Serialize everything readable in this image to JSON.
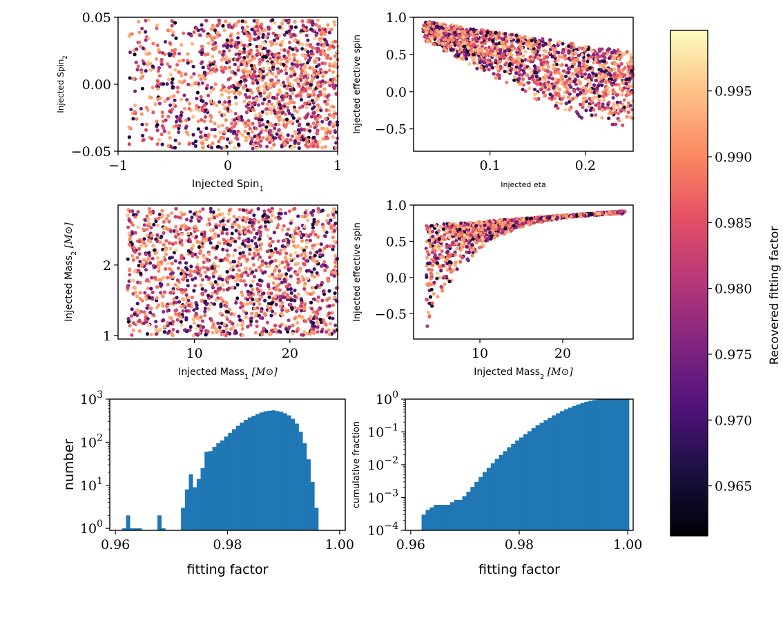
{
  "figure_title": "",
  "colors": {
    "hist_fill": "#1f77b4",
    "cmap_low": "#000004",
    "cmap_high": "#fcfdbf",
    "axes": "#000000"
  },
  "colorbar": {
    "label": "Recovered fitting factor",
    "range": [
      0.9612,
      0.9996
    ],
    "ticks": [
      "0.965",
      "0.970",
      "0.975",
      "0.980",
      "0.985",
      "0.990",
      "0.995"
    ],
    "colormap": "magma"
  },
  "chart_data": [
    {
      "id": "spin1-spin2",
      "type": "scatter",
      "xlabel": "Injected Spin",
      "xlabel_sub": "1",
      "ylabel": "Injected Spin",
      "ylabel_sub": "2",
      "xlim": [
        -1.0,
        1.0
      ],
      "ylim": [
        -0.05,
        0.05
      ],
      "xticks": [
        "−1",
        "0",
        "1"
      ],
      "yticks": [
        "−0.05",
        "0.00",
        "0.05"
      ],
      "color_by": "Recovered fitting factor",
      "description_points": "≈6000 injections spread over spin1 ∈ [−0.9, 1], spin2 ∈ [−0.05, 0.05], denser for spin1 > 0"
    },
    {
      "id": "eta-chieff",
      "type": "scatter",
      "xlabel": "Injected eta",
      "ylabel": "Injected effective spin",
      "xlim": [
        0.02,
        0.25
      ],
      "ylim": [
        -0.8,
        1.0
      ],
      "xticks": [
        "0.1",
        "0.2"
      ],
      "yticks": [
        "−0.5",
        "0.0",
        "0.5",
        "1.0"
      ],
      "color_by": "Recovered fitting factor"
    },
    {
      "id": "mass1-mass2",
      "type": "scatter",
      "xlabel": "Injected Mass",
      "xlabel_sub": "1",
      "xlabel_unit": "[M⊙]",
      "ylabel": "Injected Mass",
      "ylabel_sub": "2",
      "ylabel_unit": "[M⊙]",
      "xlim": [
        2.0,
        25.0
      ],
      "ylim": [
        0.95,
        2.85
      ],
      "xticks": [
        "10",
        "20"
      ],
      "yticks": [
        "1",
        "2"
      ],
      "color_by": "Recovered fitting factor"
    },
    {
      "id": "mass2-chieff",
      "type": "scatter",
      "xlabel": "Injected Mass",
      "xlabel_sub": "2",
      "xlabel_unit": "[M⊙]",
      "ylabel": "Injected effective spin",
      "xlim": [
        2.0,
        28.5
      ],
      "ylim": [
        -0.85,
        1.0
      ],
      "xticks": [
        "10",
        "20"
      ],
      "yticks": [
        "−0.5",
        "0.0",
        "0.5",
        "1.0"
      ],
      "color_by": "Recovered fitting factor"
    },
    {
      "id": "hist-number",
      "type": "bar",
      "xlabel": "fitting factor",
      "ylabel": "number",
      "xlim": [
        0.959,
        1.001
      ],
      "yscale": "log",
      "ylim": [
        0.9,
        1000
      ],
      "xticks": [
        "0.96",
        "0.98",
        "1.00"
      ],
      "yticks_base": "10",
      "yticks_exp": [
        "0",
        "1",
        "2",
        "3"
      ],
      "bins": {
        "start": 0.9612,
        "width": 0.0007,
        "counts": [
          1,
          2,
          1,
          1,
          1,
          0,
          0,
          0,
          0,
          2,
          1,
          0,
          0,
          0,
          0,
          3,
          8,
          18,
          9,
          14,
          25,
          60,
          62,
          78,
          95,
          110,
          135,
          165,
          200,
          240,
          285,
          330,
          375,
          410,
          450,
          490,
          520,
          535,
          550,
          530,
          510,
          470,
          420,
          350,
          270,
          175,
          95,
          40,
          12,
          3
        ]
      }
    },
    {
      "id": "hist-cumulative",
      "type": "bar",
      "xlabel": "fitting factor",
      "ylabel": "cumulative fraction",
      "xlim": [
        0.959,
        1.001
      ],
      "yscale": "log",
      "ylim": [
        0.0001,
        1.0
      ],
      "xticks": [
        "0.96",
        "0.98",
        "1.00"
      ],
      "yticks_base": "10",
      "yticks_exp": [
        "−4",
        "−3",
        "−2",
        "−1",
        "0"
      ],
      "bins": {
        "start": 0.962,
        "width": 0.00075,
        "values": [
          0.0003,
          0.00042,
          0.0005,
          0.0006,
          0.0006,
          0.0006,
          0.0006,
          0.00072,
          0.00085,
          0.00085,
          0.0011,
          0.0015,
          0.0021,
          0.003,
          0.0042,
          0.006,
          0.008,
          0.011,
          0.015,
          0.02,
          0.026,
          0.034,
          0.043,
          0.055,
          0.068,
          0.085,
          0.105,
          0.13,
          0.16,
          0.19,
          0.23,
          0.27,
          0.32,
          0.37,
          0.43,
          0.49,
          0.55,
          0.62,
          0.69,
          0.76,
          0.83,
          0.89,
          0.94,
          0.98,
          0.995,
          1.0,
          1.0,
          1.0,
          1.0,
          1.0,
          1.0
        ]
      }
    }
  ]
}
